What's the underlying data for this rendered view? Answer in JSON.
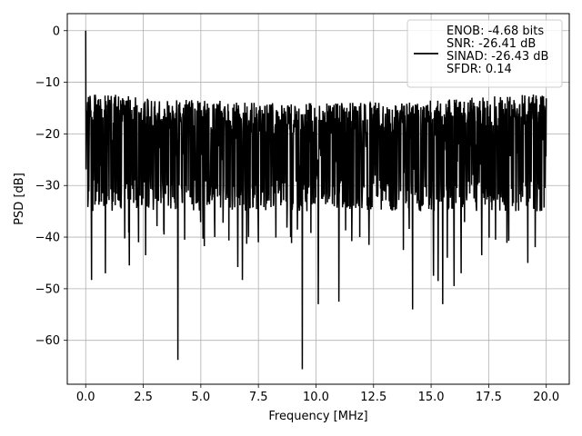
{
  "chart_data": {
    "type": "line",
    "title": "",
    "xlabel": "Frequency [MHz]",
    "ylabel": "PSD [dB]",
    "xlim": [
      -0.8,
      21.0
    ],
    "ylim": [
      -68.5,
      3.3
    ],
    "xticks": [
      0.0,
      2.5,
      5.0,
      7.5,
      10.0,
      12.5,
      15.0,
      17.5,
      20.0
    ],
    "xtick_labels": [
      "0.0",
      "2.5",
      "5.0",
      "7.5",
      "10.0",
      "12.5",
      "15.0",
      "17.5",
      "20.0"
    ],
    "yticks": [
      0,
      -10,
      -20,
      -30,
      -40,
      -50,
      -60
    ],
    "ytick_labels": [
      "0",
      "−10",
      "−20",
      "−30",
      "−40",
      "−50",
      "−60"
    ],
    "grid": true,
    "legend_placement": "top-right",
    "legend": [
      "ENOB: -4.68 bits",
      "SNR: -26.41 dB",
      "SINAD: -26.43 dB",
      "SFDR: 0.14"
    ],
    "series": [
      {
        "color": "#000000",
        "description": "dense noise-like PSD trace from 0 to 20 MHz, band roughly -35 to -12 dB",
        "peak": [
          0.0,
          0.0
        ],
        "noise_band": [
          -35,
          -12
        ],
        "spikes": [
          [
            0.25,
            -48.3
          ],
          [
            0.85,
            -47.0
          ],
          [
            1.9,
            -45.5
          ],
          [
            2.3,
            -41.0
          ],
          [
            2.6,
            -43.5
          ],
          [
            3.4,
            -39.5
          ],
          [
            4.0,
            -63.8
          ],
          [
            4.3,
            -40.5
          ],
          [
            5.1,
            -40.3
          ],
          [
            5.6,
            -40.0
          ],
          [
            6.6,
            -45.8
          ],
          [
            6.8,
            -48.3
          ],
          [
            7.5,
            -41.0
          ],
          [
            8.9,
            -40.0
          ],
          [
            9.4,
            -65.6
          ],
          [
            10.1,
            -53.0
          ],
          [
            11.0,
            -52.5
          ],
          [
            11.9,
            -40.0
          ],
          [
            12.3,
            -41.5
          ],
          [
            13.8,
            -42.5
          ],
          [
            14.2,
            -54.0
          ],
          [
            15.1,
            -47.5
          ],
          [
            15.3,
            -48.5
          ],
          [
            15.5,
            -53.0
          ],
          [
            15.7,
            -44.0
          ],
          [
            16.0,
            -49.5
          ],
          [
            16.3,
            -47.0
          ],
          [
            17.2,
            -43.5
          ],
          [
            17.8,
            -40.5
          ],
          [
            19.2,
            -45.0
          ]
        ]
      }
    ]
  }
}
